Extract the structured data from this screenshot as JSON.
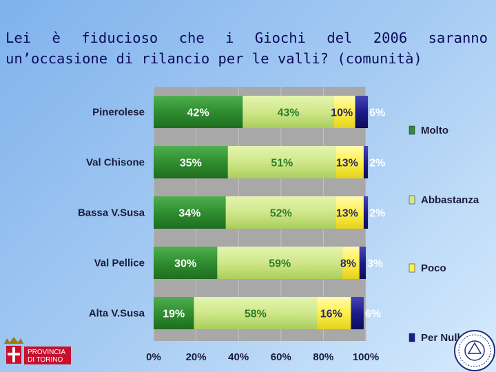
{
  "title": "Lei è fiducioso che i Giochi del 2006 saranno un’occasione di rilancio per le valli? (comunità)",
  "logo_left": {
    "text_line1": "PROVINCIA",
    "text_line2": "DI TORINO"
  },
  "colors": {
    "molto": "#2f8e2f",
    "abbastanza": "#cfe88a",
    "poco": "#fff04a",
    "per_nulla": "#1c1c8a",
    "plot_bg": "#a8a8a8"
  },
  "chart_data": {
    "type": "bar",
    "orientation": "horizontal",
    "stacked": true,
    "categories": [
      "Pinerolese",
      "Val Chisone",
      "Bassa V.Susa",
      "Val Pellice",
      "Alta V.Susa"
    ],
    "series": [
      {
        "name": "Molto",
        "values": [
          42,
          35,
          34,
          30,
          19
        ],
        "labels": [
          "42%",
          "35%",
          "34%",
          "30%",
          "19%"
        ]
      },
      {
        "name": "Abbastanza",
        "values": [
          43,
          51,
          52,
          59,
          58
        ],
        "labels": [
          "43%",
          "51%",
          "52%",
          "59%",
          "58%"
        ]
      },
      {
        "name": "Poco",
        "values": [
          10,
          13,
          13,
          8,
          16
        ],
        "labels": [
          "10%",
          "13%",
          "13%",
          "8%",
          "16%"
        ]
      },
      {
        "name": "Per Nulla",
        "values": [
          6,
          2,
          2,
          3,
          6
        ],
        "labels": [
          "6%",
          "2%",
          "2%",
          "3%",
          "6%"
        ]
      }
    ],
    "xlim": [
      0,
      100
    ],
    "x_ticks": [
      "0%",
      "20%",
      "40%",
      "60%",
      "80%",
      "100%"
    ],
    "grid": true,
    "legend_position": "right"
  }
}
